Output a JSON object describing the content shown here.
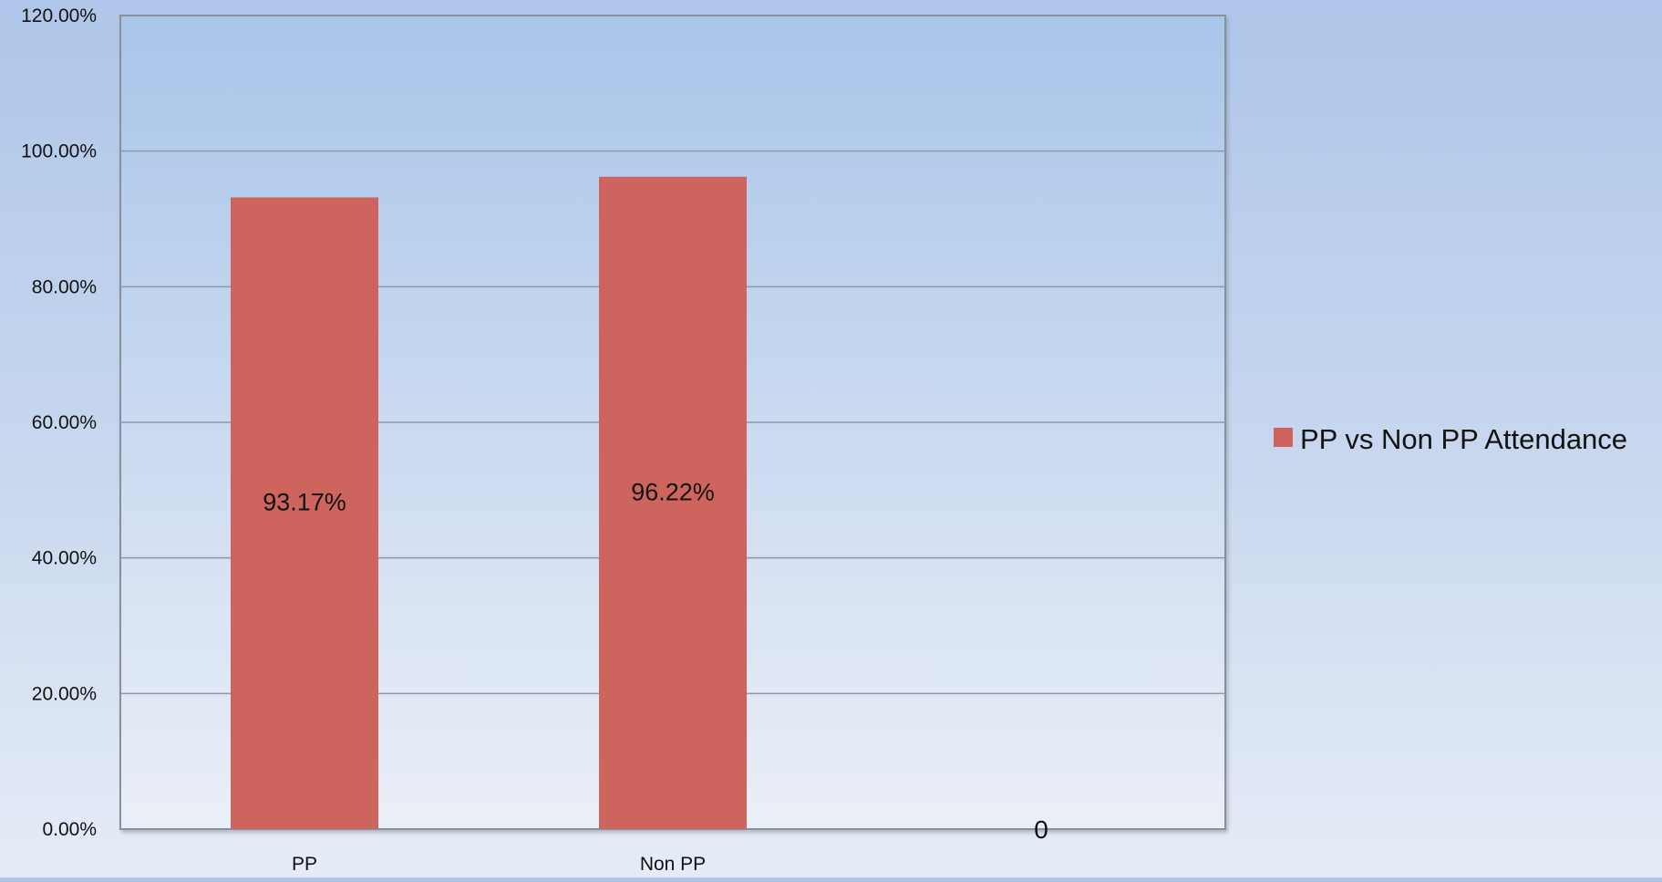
{
  "chart_data": {
    "type": "bar",
    "categories": [
      "PP",
      "Non PP",
      ""
    ],
    "series": [
      {
        "name": "PP vs Non PP Attendance",
        "values": [
          93.17,
          96.22,
          0
        ],
        "data_labels": [
          "93.17%",
          "96.22%",
          "0"
        ],
        "color": "#cd655e"
      }
    ],
    "y_ticks": [
      "0.00%",
      "20.00%",
      "40.00%",
      "60.00%",
      "80.00%",
      "100.00%",
      "120.00%"
    ],
    "ylim": [
      0,
      120
    ],
    "grid": true,
    "legend_position": "right",
    "title": "",
    "xlabel": "",
    "ylabel": ""
  },
  "colors": {
    "bar": "#cd655e",
    "gridline": "#8f97a3",
    "axis": "#8a9098",
    "plot_top": "#a9c5ea",
    "plot_bottom": "#ebeff7"
  }
}
